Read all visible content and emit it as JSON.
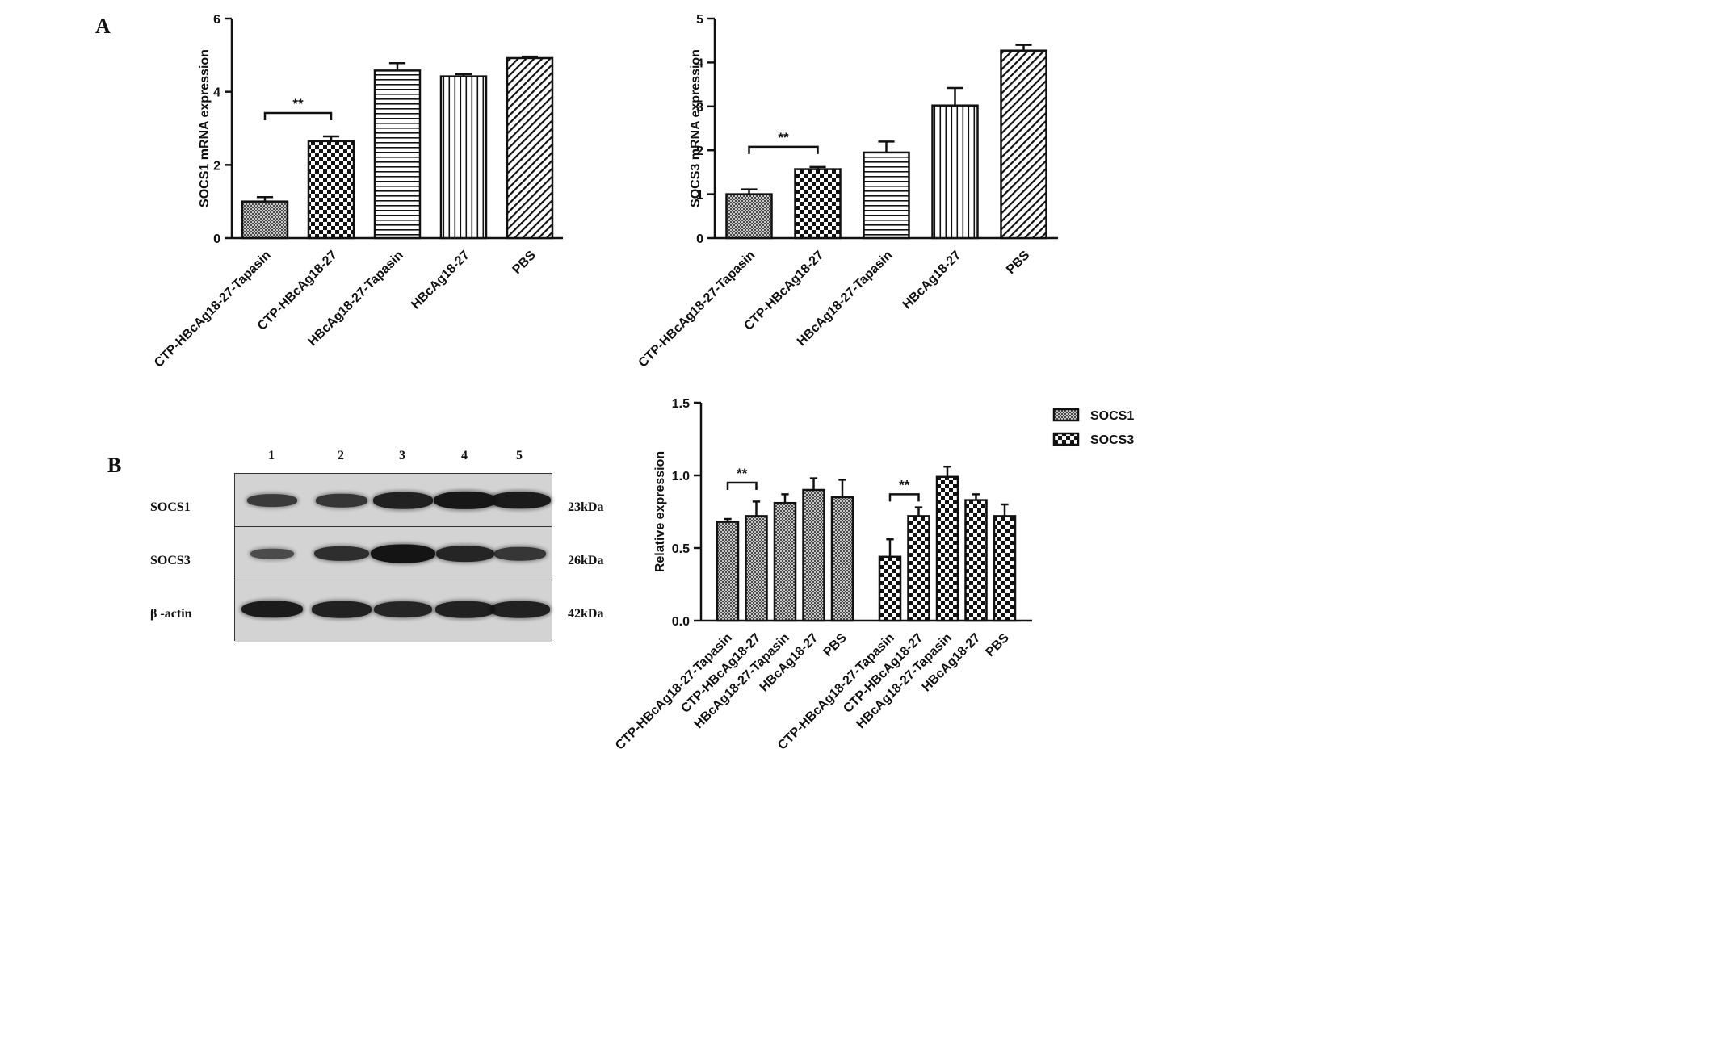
{
  "panels": {
    "a": "A",
    "b": "B"
  },
  "chart_data": [
    {
      "type": "bar",
      "id": "socs1-mrna",
      "ylabel": "SOCS1 mRNA expression",
      "xlabel": "",
      "ylim": [
        0,
        6
      ],
      "yticks": [
        "0",
        "2",
        "4",
        "6"
      ],
      "categories": [
        "CTP-HBcAg18-27-Tapasin",
        "CTP-HBcAg18-27",
        "HBcAg18-27-Tapasin",
        "HBcAg18-27",
        "PBS"
      ],
      "values": [
        1.0,
        2.65,
        4.58,
        4.42,
        4.92
      ],
      "errors": [
        0.12,
        0.13,
        0.2,
        0.06,
        0.04
      ],
      "patterns": [
        "fine-check",
        "checker",
        "horizontal",
        "vertical",
        "diagonal"
      ],
      "significance": [
        {
          "from": 0,
          "to": 1,
          "y": 3.42,
          "label": "**"
        }
      ],
      "grid": false
    },
    {
      "type": "bar",
      "id": "socs3-mrna",
      "ylabel": "SOCS3 mRNA expression",
      "xlabel": "",
      "ylim": [
        0,
        5
      ],
      "yticks": [
        "0",
        "1",
        "2",
        "3",
        "4",
        "5"
      ],
      "categories": [
        "CTP-HBcAg18-27-Tapasin",
        "CTP-HBcAg18-27",
        "HBcAg18-27-Tapasin",
        "HBcAg18-27",
        "PBS"
      ],
      "values": [
        1.0,
        1.57,
        1.95,
        3.02,
        4.27
      ],
      "errors": [
        0.11,
        0.05,
        0.25,
        0.4,
        0.13
      ],
      "patterns": [
        "fine-check",
        "checker",
        "horizontal",
        "vertical",
        "diagonal"
      ],
      "significance": [
        {
          "from": 0,
          "to": 1,
          "y": 2.08,
          "label": "**"
        }
      ],
      "grid": false
    },
    {
      "type": "bar",
      "id": "relative-expression",
      "ylabel": "Relative expression",
      "xlabel": "",
      "ylim": [
        0,
        1.5
      ],
      "yticks": [
        "0.0",
        "0.5",
        "1.0",
        "1.5"
      ],
      "categories": [
        "CTP-HBcAg18-27-Tapasin",
        "CTP-HBcAg18-27",
        "HBcAg18-27-Tapasin",
        "HBcAg18-27",
        "PBS"
      ],
      "series": [
        {
          "name": "SOCS1",
          "values": [
            0.68,
            0.72,
            0.81,
            0.9,
            0.85
          ],
          "errors": [
            0.02,
            0.1,
            0.06,
            0.08,
            0.12
          ],
          "pattern": "fine-check"
        },
        {
          "name": "SOCS3",
          "values": [
            0.44,
            0.72,
            0.99,
            0.83,
            0.72
          ],
          "errors": [
            0.12,
            0.06,
            0.07,
            0.04,
            0.08
          ],
          "pattern": "checker"
        }
      ],
      "significance": [
        {
          "series": 0,
          "from": 0,
          "to": 1,
          "y": 0.95,
          "label": "**"
        },
        {
          "series": 1,
          "from": 0,
          "to": 1,
          "y": 0.87,
          "label": "**"
        }
      ],
      "legend": "top-right",
      "grid": false
    }
  ],
  "blot": {
    "lanes": [
      "1",
      "2",
      "3",
      "4",
      "5"
    ],
    "rows": [
      {
        "label": "SOCS1",
        "size": "23kDa",
        "intensity": [
          0.55,
          0.6,
          0.85,
          0.95,
          0.9
        ]
      },
      {
        "label": "SOCS3",
        "size": "26kDa",
        "intensity": [
          0.35,
          0.7,
          1.0,
          0.8,
          0.6
        ]
      },
      {
        "label": "β -actin",
        "size": "42kDa",
        "intensity": [
          0.9,
          0.85,
          0.8,
          0.85,
          0.85
        ]
      }
    ]
  }
}
